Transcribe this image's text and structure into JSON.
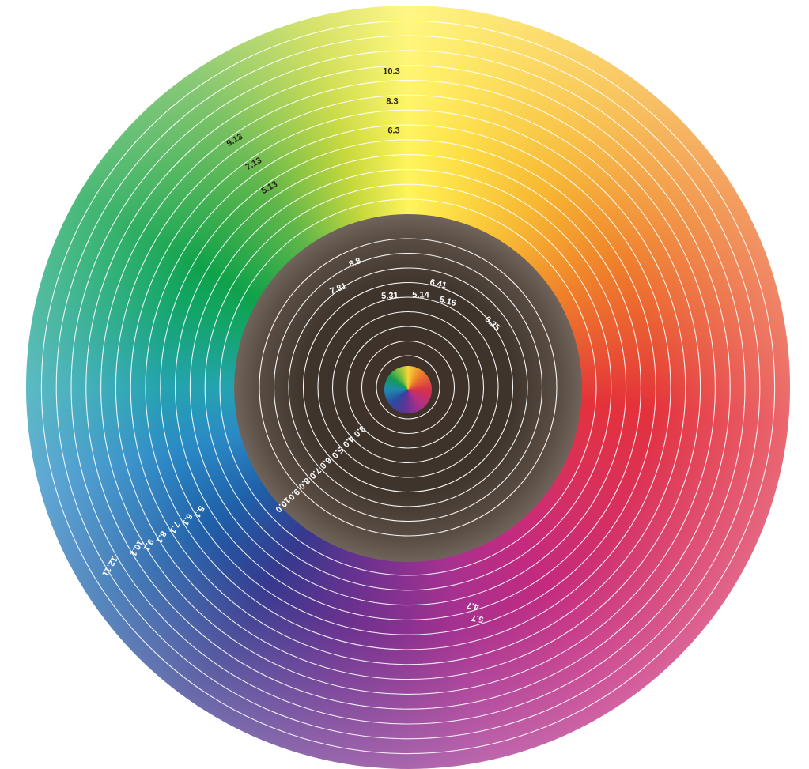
{
  "outer_labels_top": [
    "10.3",
    "8.3",
    "6.3"
  ],
  "outer_labels_upper_left": [
    "9.13",
    "7.13",
    "5.13"
  ],
  "outer_labels_left": [
    "5.1",
    "6.1",
    "7.1",
    "8.1",
    "9.1",
    "10.1",
    "12.11"
  ],
  "outer_labels_bottom": [
    "4.7",
    "5.7"
  ],
  "inner_labels_top": [
    "8.8",
    "7.81",
    "5.31",
    "5.14",
    "6.41",
    "5.16",
    "6.35"
  ],
  "inner_labels_lower_left": [
    "3.0",
    "4.0",
    "5.0",
    "6.0",
    "7.0",
    "8.0",
    "9.0",
    "10.0"
  ]
}
